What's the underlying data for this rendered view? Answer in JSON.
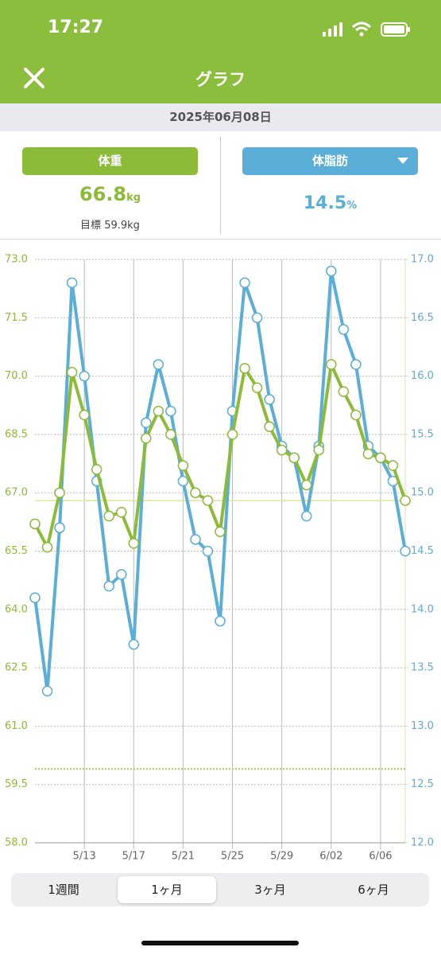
{
  "status_bar": {
    "time": "17:27"
  },
  "header": {
    "title": "グラフ"
  },
  "date": "2025年06月08日",
  "weight": {
    "label": "体重",
    "value": 66.8,
    "unit": "kg",
    "target_label": "目標",
    "target": 59.9,
    "target_unit": "kg"
  },
  "body_fat": {
    "label": "体脂肪",
    "value": 14.5,
    "unit": "%"
  },
  "chart_data": {
    "type": "line",
    "categories": [
      null,
      null,
      null,
      null,
      "5/13",
      null,
      null,
      null,
      "5/17",
      null,
      null,
      null,
      "5/21",
      null,
      null,
      null,
      "5/25",
      null,
      null,
      null,
      "5/29",
      null,
      null,
      null,
      "6/02",
      null,
      null,
      null,
      "6/06",
      null,
      null
    ],
    "series": [
      {
        "name": "体重",
        "color": "#8cbb3a",
        "axis": "y",
        "values": [
          66.2,
          65.6,
          67.0,
          70.1,
          69.0,
          67.6,
          66.4,
          66.5,
          65.7,
          68.4,
          69.1,
          68.5,
          67.7,
          67.0,
          66.8,
          66.0,
          68.5,
          70.2,
          69.7,
          68.7,
          68.1,
          67.9,
          67.2,
          68.1,
          70.3,
          69.6,
          69.0,
          68.0,
          67.9,
          67.7,
          66.8
        ]
      },
      {
        "name": "体脂肪",
        "color": "#5aaed8",
        "axis": "y2",
        "values": [
          14.1,
          13.3,
          14.7,
          16.8,
          16.0,
          15.1,
          14.2,
          14.3,
          13.7,
          15.6,
          16.1,
          15.7,
          15.1,
          14.6,
          14.5,
          13.9,
          15.7,
          16.8,
          16.5,
          15.8,
          15.4,
          15.3,
          14.8,
          15.4,
          16.9,
          16.4,
          16.1,
          15.4,
          15.3,
          15.1,
          14.5
        ]
      }
    ],
    "ylim": [
      58.0,
      73.0
    ],
    "yticks": [
      {
        "value": 58,
        "label": "58.0"
      },
      59.5,
      {
        "value": 61,
        "label": "61.0"
      },
      62.5,
      {
        "value": 64,
        "label": "64.0"
      },
      65.5,
      {
        "value": 67,
        "label": "67.0"
      },
      68.5,
      {
        "value": 70,
        "label": "70.0"
      },
      71.5,
      {
        "value": 73,
        "label": "73.0"
      }
    ],
    "y2lim": [
      12.0,
      17.0
    ],
    "y2ticks": [
      {
        "value": 12,
        "label": "12.0"
      },
      12.5,
      {
        "value": 13,
        "label": "13.0"
      },
      13.5,
      {
        "value": 14,
        "label": "14.0"
      },
      14.5,
      {
        "value": 15,
        "label": "15.0"
      },
      15.5,
      {
        "value": 16,
        "label": "16.0"
      },
      16.5,
      {
        "value": 17,
        "label": "17.0"
      }
    ],
    "grid": true
  },
  "tabs": {
    "items": [
      "1週間",
      "1ヶ月",
      "3ヶ月",
      "6ヶ月"
    ],
    "selected": 1
  }
}
